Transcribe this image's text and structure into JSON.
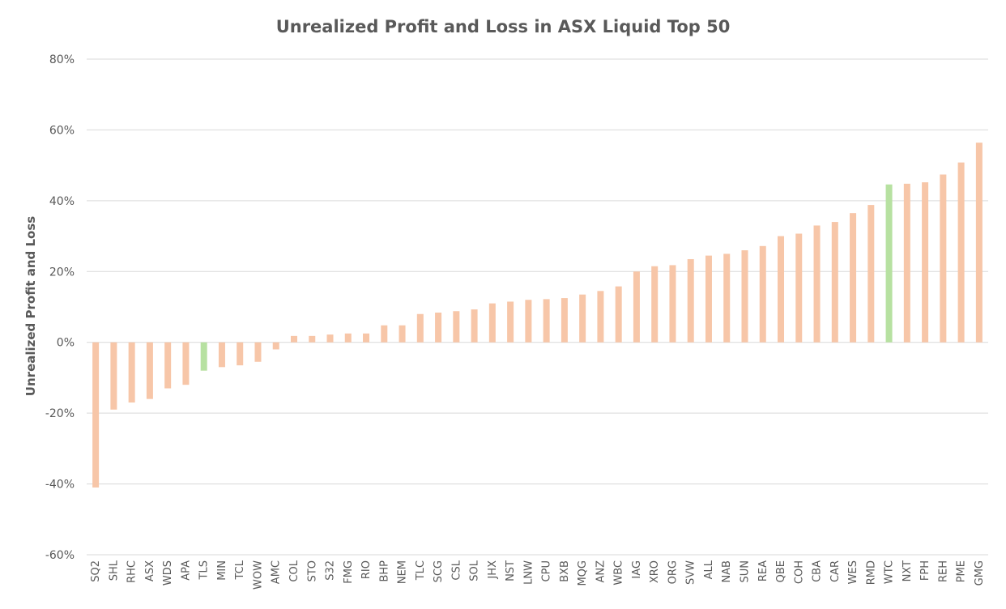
{
  "chart_data": {
    "type": "bar",
    "title": "Unrealized Profit and Loss in ASX Liquid Top 50",
    "xlabel": "",
    "ylabel": "Unrealized Profit and Loss",
    "ylim": [
      -0.6,
      0.8
    ],
    "yticks": [
      -0.6,
      -0.4,
      -0.2,
      0,
      0.2,
      0.4,
      0.6,
      0.8
    ],
    "ytick_labels": [
      "-60%",
      "-40%",
      "-20%",
      "0%",
      "20%",
      "40%",
      "60%",
      "80%"
    ],
    "grid": true,
    "legend": "none",
    "colors": {
      "default": "#f7c6a8",
      "highlight": "#b7e1a1",
      "grid": "#d9d9d9",
      "text": "#595959"
    },
    "categories": [
      "SQ2",
      "SHL",
      "RHC",
      "ASX",
      "WDS",
      "APA",
      "TLS",
      "MIN",
      "TCL",
      "WOW",
      "AMC",
      "COL",
      "STO",
      "S32",
      "FMG",
      "RIO",
      "BHP",
      "NEM",
      "TLC",
      "SCG",
      "CSL",
      "SOL",
      "JHX",
      "NST",
      "LNW",
      "CPU",
      "BXB",
      "MQG",
      "ANZ",
      "WBC",
      "IAG",
      "XRO",
      "ORG",
      "SVW",
      "ALL",
      "NAB",
      "SUN",
      "REA",
      "QBE",
      "COH",
      "CBA",
      "CAR",
      "WES",
      "RMD",
      "WTC",
      "NXT",
      "FPH",
      "REH",
      "PME",
      "GMG"
    ],
    "values": [
      -0.41,
      -0.19,
      -0.17,
      -0.16,
      -0.13,
      -0.12,
      -0.08,
      -0.07,
      -0.065,
      -0.055,
      -0.02,
      0.018,
      0.018,
      0.022,
      0.025,
      0.025,
      0.048,
      0.048,
      0.08,
      0.084,
      0.088,
      0.093,
      0.11,
      0.115,
      0.12,
      0.122,
      0.125,
      0.135,
      0.145,
      0.158,
      0.2,
      0.215,
      0.218,
      0.235,
      0.245,
      0.25,
      0.26,
      0.272,
      0.3,
      0.307,
      0.33,
      0.34,
      0.365,
      0.388,
      0.446,
      0.448,
      0.452,
      0.474,
      0.508,
      0.564
    ],
    "highlighted": [
      "TLS",
      "WTC"
    ]
  }
}
